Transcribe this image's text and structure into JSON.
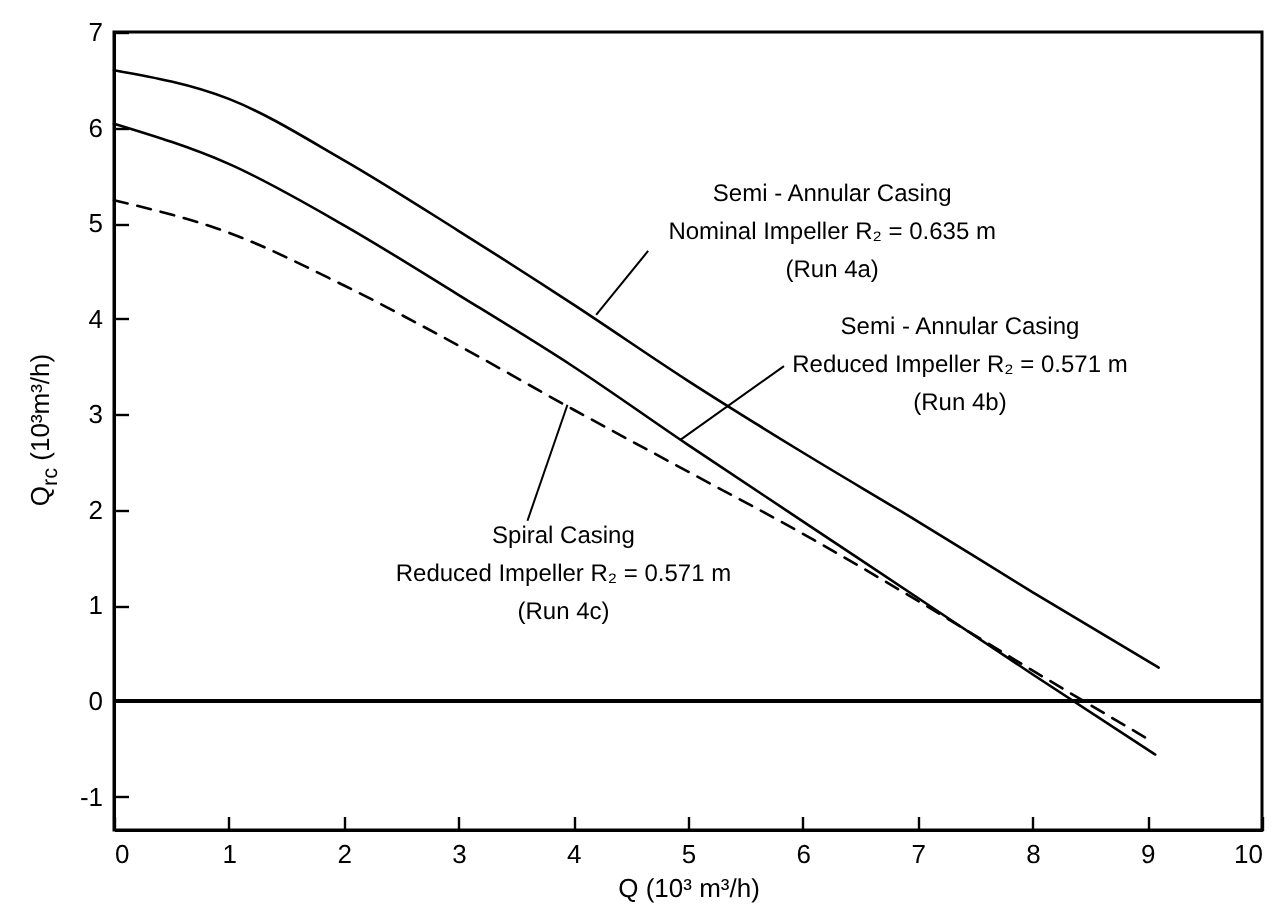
{
  "chart_data": {
    "type": "line",
    "xlabel": "Q (10³ m³/h)",
    "ylabel": "Q$_{rc}$ (10³m³/h)",
    "xlim": [
      0,
      10
    ],
    "ylim": [
      -1.35,
      7
    ],
    "xticks": [
      0,
      1,
      2,
      3,
      4,
      5,
      6,
      7,
      8,
      9,
      10
    ],
    "yticks": [
      -1,
      0,
      1,
      2,
      3,
      4,
      5,
      6,
      7
    ],
    "series": [
      {
        "color": "#000000",
        "line_style": "solid",
        "x": [
          0,
          1,
          2,
          3,
          4,
          5,
          6,
          7,
          8,
          9.1
        ],
        "values": [
          6.6,
          6.3,
          5.66,
          4.92,
          4.15,
          3.35,
          2.6,
          1.88,
          1.14,
          0.35
        ]
      },
      {
        "color": "#000000",
        "line_style": "solid",
        "x": [
          0,
          1,
          2,
          3,
          4,
          5,
          6,
          7,
          8,
          9.07
        ],
        "values": [
          6.04,
          5.62,
          4.98,
          4.25,
          3.5,
          2.68,
          1.88,
          1.08,
          0.28,
          -0.56
        ]
      },
      {
        "color": "#000000",
        "line_style": "dashed",
        "x": [
          0,
          1,
          2,
          3,
          4,
          5,
          6,
          7,
          8,
          9.05
        ],
        "values": [
          5.24,
          4.9,
          4.35,
          3.72,
          3.05,
          2.4,
          1.75,
          1.05,
          0.32,
          -0.43
        ]
      }
    ],
    "ref_lines": [
      {
        "axis": "y",
        "value": 0,
        "color": "#000000",
        "line_style": "solid"
      }
    ],
    "annotations": [
      {
        "text": "Semi - Annular Casing\nNominal Impeller R₂ = 0.635 m\n(Run 4a)",
        "x": 4.2,
        "y": 4.04
      },
      {
        "text": "Semi - Annular Casing\nReduced Impeller R₂ = 0.571 m\n(Run 4b)",
        "x": 4.93,
        "y": 2.73
      },
      {
        "text": "Spiral Casing\nReduced Impeller R₂ = 0.571 m\n(Run 4c)",
        "x": 3.95,
        "y": 3.1
      }
    ]
  }
}
